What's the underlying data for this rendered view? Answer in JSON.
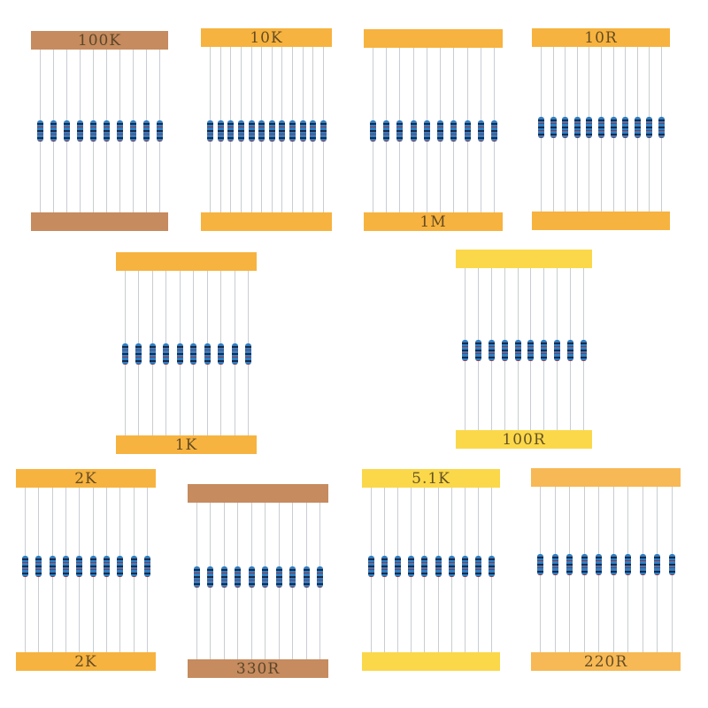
{
  "packets": [
    {
      "label": "100K",
      "label_on": "top",
      "tape_color": "#c68b5e",
      "resistor_count": 10
    },
    {
      "label": "10K",
      "label_on": "top",
      "tape_color": "#f7b33f",
      "resistor_count": 12
    },
    {
      "label": "1M",
      "label_on": "bottom",
      "tape_color": "#f7b33f",
      "resistor_count": 10
    },
    {
      "label": "10R",
      "label_on": "top",
      "tape_color": "#f7b33f",
      "resistor_count": 11
    },
    {
      "label": "1K",
      "label_on": "bottom",
      "tape_color": "#f7b33f",
      "resistor_count": 10
    },
    {
      "label": "100R",
      "label_on": "bottom",
      "tape_color": "#fbd84a",
      "resistor_count": 10
    },
    {
      "label": "2K",
      "label_on": "both",
      "tape_color": "#f7b33f",
      "resistor_count": 10
    },
    {
      "label": "330R",
      "label_on": "bottom",
      "tape_color": "#c68b5e",
      "resistor_count": 10
    },
    {
      "label": "5.1K",
      "label_on": "top",
      "tape_color": "#fbd84a",
      "resistor_count": 10
    },
    {
      "label": "220R",
      "label_on": "bottom",
      "tape_color": "#f7b955",
      "resistor_count": 10
    }
  ]
}
